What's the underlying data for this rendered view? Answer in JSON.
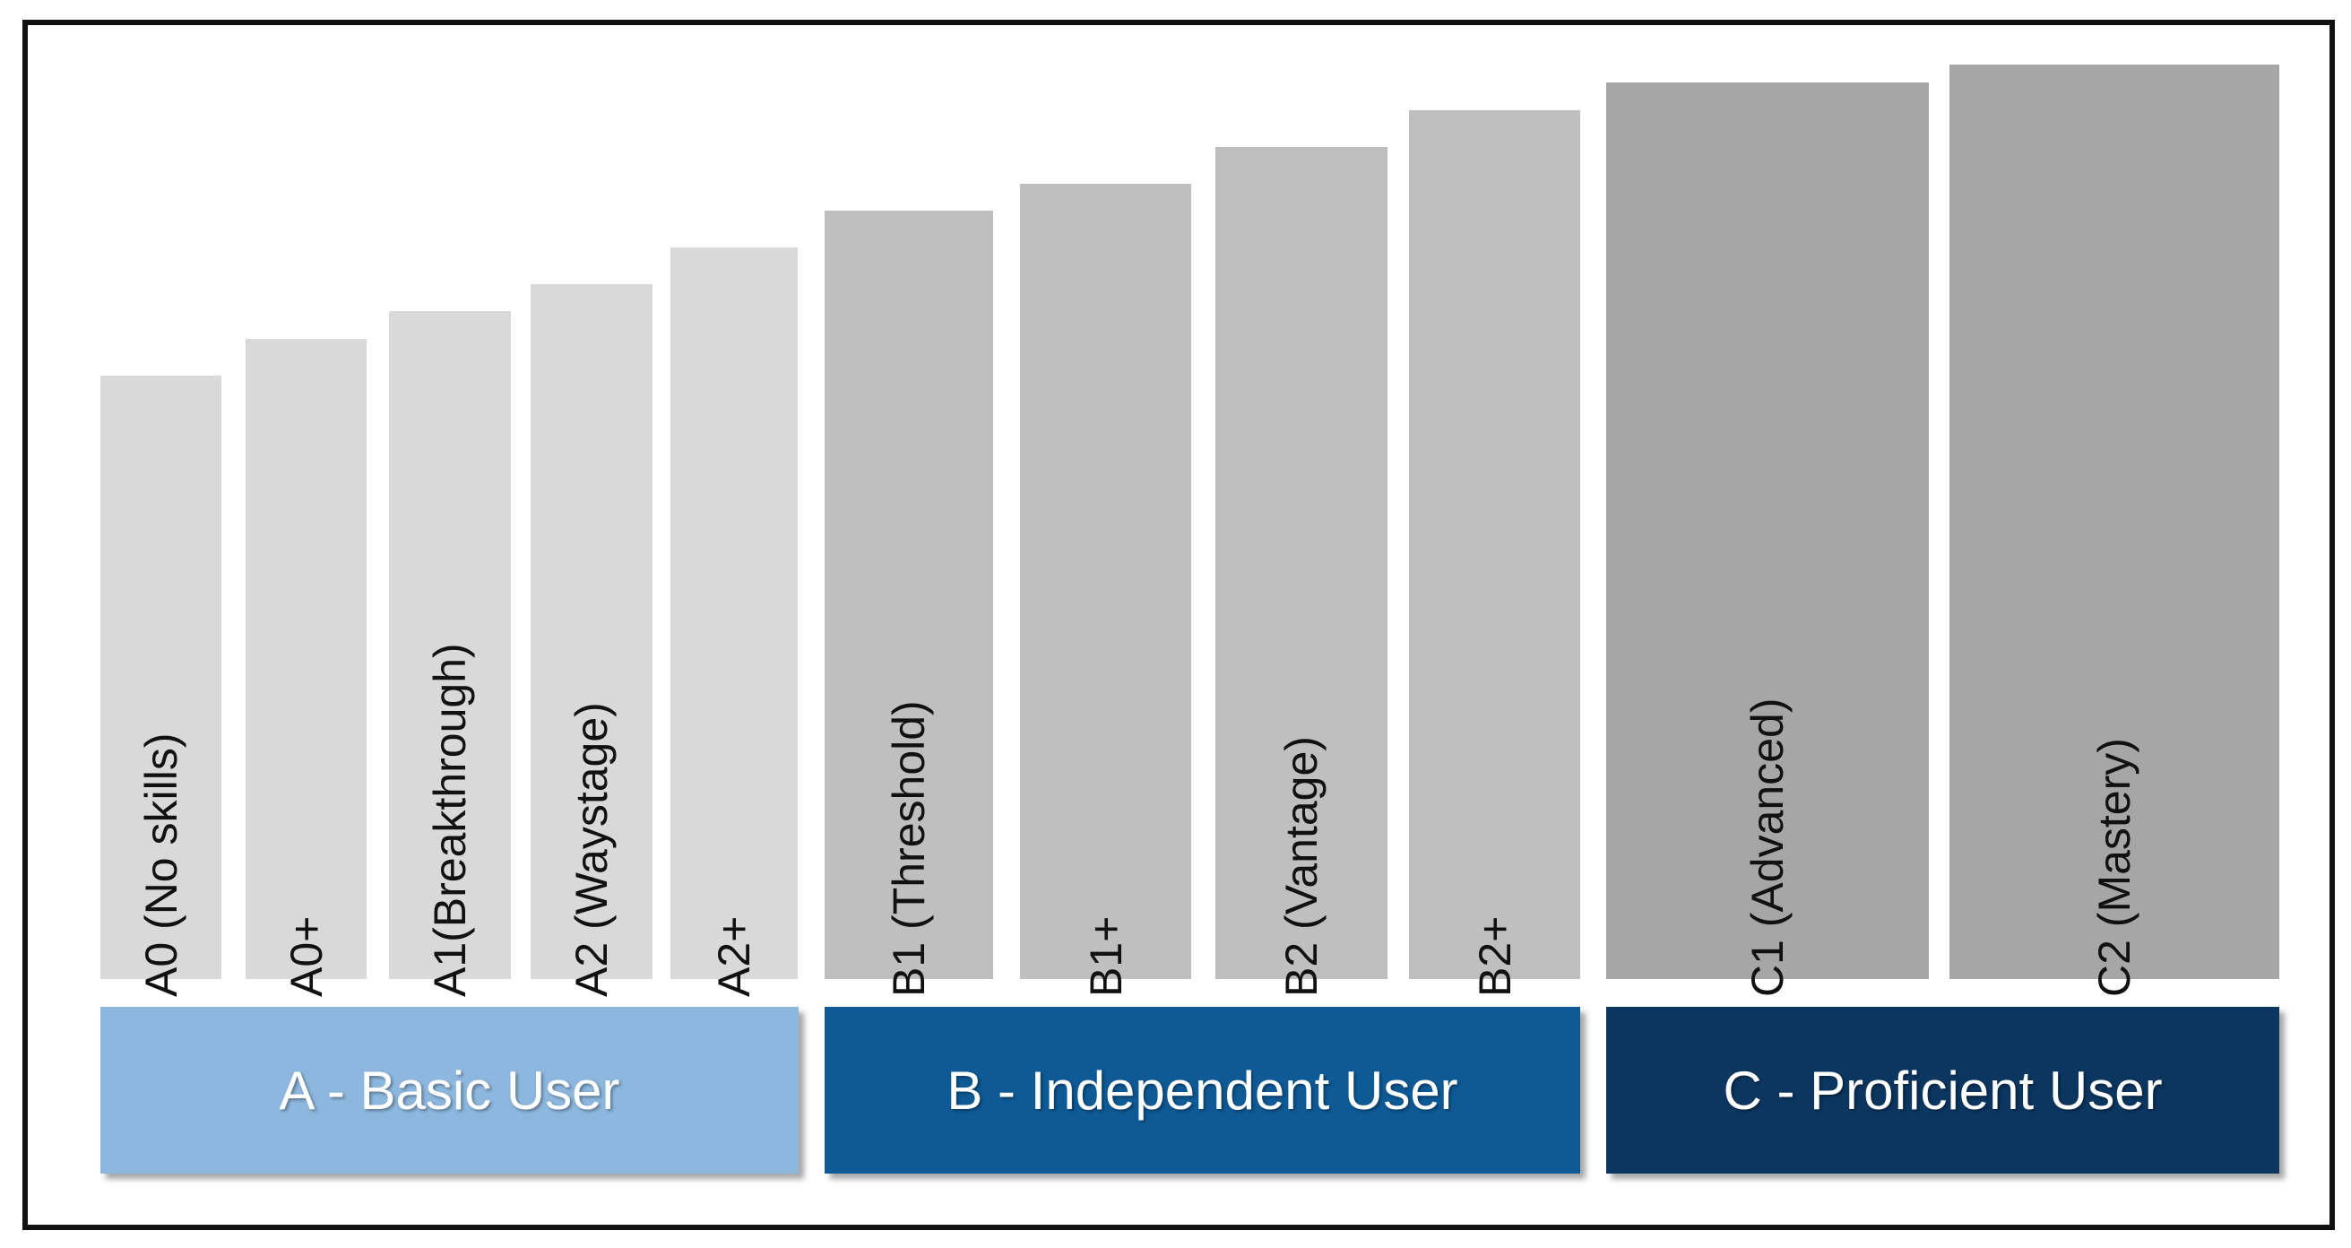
{
  "levels": [
    {
      "label": "A0 (No skills)",
      "relative_height": 0.66,
      "color": "#d9d9d9"
    },
    {
      "label": "A0+",
      "relative_height": 0.7,
      "color": "#d9d9d9"
    },
    {
      "label": "A1(Breakthrough)",
      "relative_height": 0.73,
      "color": "#d9d9d9"
    },
    {
      "label": "A2 (Waystage)",
      "relative_height": 0.76,
      "color": "#d9d9d9"
    },
    {
      "label": "A2+",
      "relative_height": 0.8,
      "color": "#d9d9d9"
    },
    {
      "label": "B1 (Threshold)",
      "relative_height": 0.84,
      "color": "#bfbfbf"
    },
    {
      "label": "B1+",
      "relative_height": 0.87,
      "color": "#bfbfbf"
    },
    {
      "label": "B2 (Vantage)",
      "relative_height": 0.91,
      "color": "#bfbfbf"
    },
    {
      "label": "B2+",
      "relative_height": 0.95,
      "color": "#bfbfbf"
    },
    {
      "label": "C1 (Advanced)",
      "relative_height": 0.98,
      "color": "#a6a6a6"
    },
    {
      "label": "C2 (Mastery)",
      "relative_height": 1.0,
      "color": "#a6a6a6"
    }
  ],
  "groups": [
    {
      "label": "A - Basic User",
      "color": "#8db7de"
    },
    {
      "label": "B - Independent User",
      "color": "#0e5a96"
    },
    {
      "label": "C - Proficient User",
      "color": "#0b3660"
    }
  ]
}
